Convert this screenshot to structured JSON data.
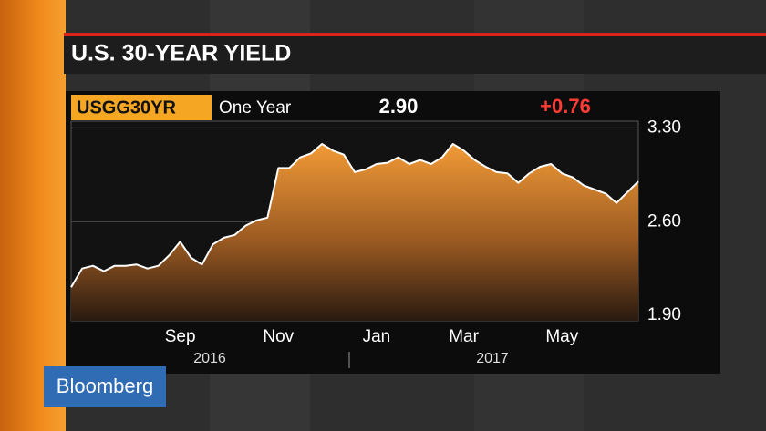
{
  "header": {
    "title": "U.S. 30-YEAR YIELD",
    "ticker": "USGG30YR",
    "period": "One Year",
    "last": "2.90",
    "change": "+0.76"
  },
  "chart_data": {
    "type": "area",
    "categories": [
      null,
      null,
      null,
      null,
      null,
      null,
      null,
      null,
      null,
      null,
      "Sep",
      null,
      null,
      null,
      null,
      null,
      null,
      null,
      null,
      "Nov",
      null,
      null,
      null,
      null,
      null,
      null,
      null,
      null,
      "Jan",
      null,
      null,
      null,
      null,
      null,
      null,
      null,
      "Mar",
      null,
      null,
      null,
      null,
      null,
      null,
      null,
      null,
      "May",
      null,
      null,
      null,
      null,
      null,
      null,
      null
    ],
    "years": [
      "2016",
      "2017"
    ],
    "values": [
      2.11,
      2.25,
      2.27,
      2.23,
      2.27,
      2.27,
      2.28,
      2.25,
      2.27,
      2.35,
      2.45,
      2.33,
      2.28,
      2.43,
      2.48,
      2.5,
      2.57,
      2.61,
      2.63,
      3.0,
      3.0,
      3.08,
      3.11,
      3.18,
      3.13,
      3.1,
      2.97,
      2.99,
      3.03,
      3.04,
      3.08,
      3.03,
      3.06,
      3.03,
      3.08,
      3.18,
      3.13,
      3.06,
      3.01,
      2.97,
      2.96,
      2.89,
      2.96,
      3.01,
      3.03,
      2.96,
      2.93,
      2.87,
      2.84,
      2.81,
      2.74,
      2.82,
      2.9
    ],
    "color": "#f0962e",
    "ylim": [
      1.86,
      3.35
    ],
    "yticks": [
      {
        "value": 1.9,
        "label": "1.90"
      },
      {
        "value": 2.6,
        "label": "2.60"
      },
      {
        "value": 3.3,
        "label": "3.30"
      }
    ],
    "grid": true
  },
  "logo": "Bloomberg"
}
